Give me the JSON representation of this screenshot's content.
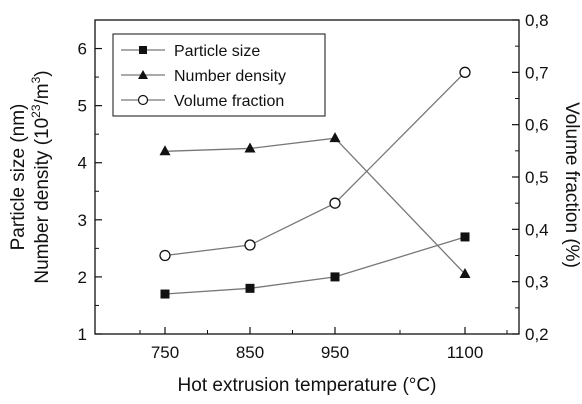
{
  "chart_data": {
    "type": "line",
    "title": "",
    "xlabel": "Hot extrusion temperature (°C)",
    "ylabel_left_line1": "Particle size (nm)",
    "ylabel_left_line2_prefix": "Number density (10",
    "ylabel_left_line2_sup1": "23",
    "ylabel_left_line2_mid": "/m",
    "ylabel_left_line2_sup2": "3",
    "ylabel_left_line2_suffix": ")",
    "ylabel_right": "Volume fraction (%)",
    "x_categories": [
      "750",
      "850",
      "950",
      "1100"
    ],
    "y_left_ticks": [
      "1",
      "2",
      "3",
      "4",
      "5",
      "6"
    ],
    "y_left_range": [
      1,
      6.5
    ],
    "y_right_ticks": [
      "0,2",
      "0,3",
      "0,4",
      "0,5",
      "0,6",
      "0,7",
      "0,8"
    ],
    "y_right_range": [
      0.2,
      0.8
    ],
    "legend_position": "top-left",
    "grid": false,
    "series": [
      {
        "name": "Particle size",
        "axis": "left",
        "marker": "square",
        "values": [
          1.7,
          1.8,
          2.0,
          2.7
        ]
      },
      {
        "name": "Number density",
        "axis": "left",
        "marker": "triangle",
        "values": [
          4.2,
          4.25,
          4.43,
          2.05
        ]
      },
      {
        "name": "Volume fraction",
        "axis": "right",
        "marker": "open-circle",
        "values": [
          0.35,
          0.37,
          0.45,
          0.7
        ]
      }
    ],
    "colors": {
      "line": "#777777",
      "marker": "#111111",
      "axis": "#111111"
    }
  }
}
